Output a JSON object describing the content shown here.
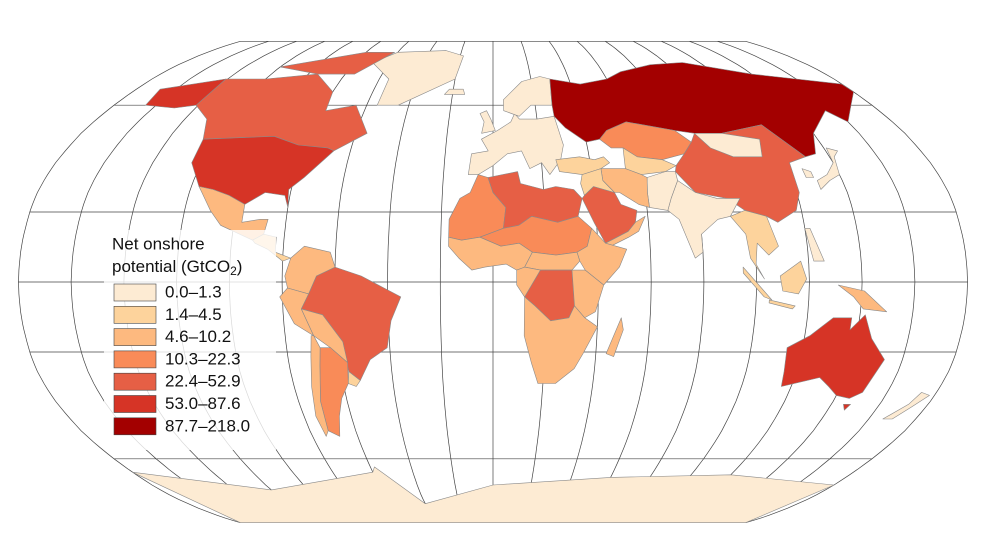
{
  "legend": {
    "title_line1": "Net onshore",
    "title_line2": {
      "text": "potential (GtCO",
      "subscript": "2",
      "end": ")"
    },
    "classes": [
      {
        "label": "0.0–1.3",
        "color": "#fdebd3"
      },
      {
        "label": "1.4–4.5",
        "color": "#fdd39c"
      },
      {
        "label": "4.6–10.2",
        "color": "#fdb97f"
      },
      {
        "label": "10.3–22.3",
        "color": "#f98b58"
      },
      {
        "label": "22.4–52.9",
        "color": "#e65f45"
      },
      {
        "label": "53.0–87.6",
        "color": "#d63426"
      },
      {
        "label": "87.7–218.0",
        "color": "#a30000"
      }
    ]
  }
}
